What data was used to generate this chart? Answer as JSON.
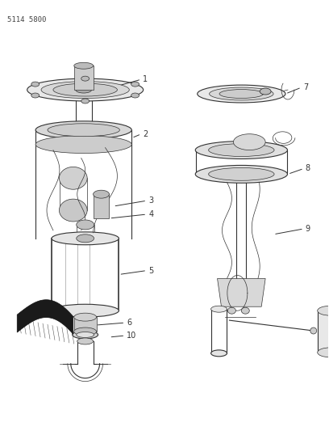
{
  "title_code": "5114 5800",
  "bg_color": "#ffffff",
  "line_color": "#333333",
  "label_color": "#333333",
  "figsize": [
    4.08,
    5.33
  ],
  "dpi": 100
}
